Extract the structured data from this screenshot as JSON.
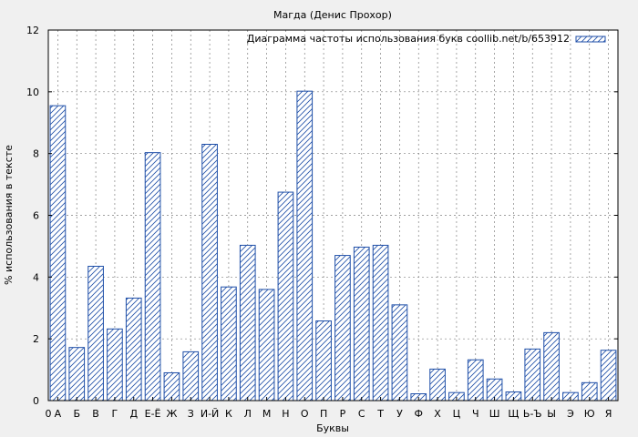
{
  "chart_data": {
    "type": "bar",
    "title": "Магда (Денис Прохор)",
    "xlabel": "Буквы",
    "ylabel": "% использования в тексте",
    "legend_label": "Диаграмма частоты использования букв coollib.net/b/653912",
    "legend_position": "top-right",
    "grid": true,
    "ylim": [
      0,
      12
    ],
    "yticks": [
      0,
      2,
      4,
      6,
      8,
      10,
      12
    ],
    "x_origin_label": "0",
    "categories": [
      "А",
      "Б",
      "В",
      "Г",
      "Д",
      "Е-Ё",
      "Ж",
      "З",
      "И-Й",
      "К",
      "Л",
      "М",
      "Н",
      "О",
      "П",
      "Р",
      "С",
      "Т",
      "У",
      "Ф",
      "Х",
      "Ц",
      "Ч",
      "Ш",
      "Щ",
      "Ь-Ъ",
      "Ы",
      "Э",
      "Ю",
      "Я"
    ],
    "values": [
      9.55,
      1.72,
      4.35,
      2.32,
      3.32,
      8.03,
      0.9,
      1.58,
      8.3,
      3.68,
      5.03,
      3.6,
      6.75,
      10.02,
      2.58,
      4.7,
      4.97,
      5.03,
      3.1,
      0.22,
      1.02,
      0.26,
      1.32,
      0.7,
      0.28,
      1.67,
      2.2,
      0.26,
      0.58,
      1.63
    ],
    "colors": {
      "bar_stroke": "#1f4fa8",
      "hatch": "#1f4fa8",
      "grid": "#808080",
      "background": "#ffffff"
    }
  }
}
